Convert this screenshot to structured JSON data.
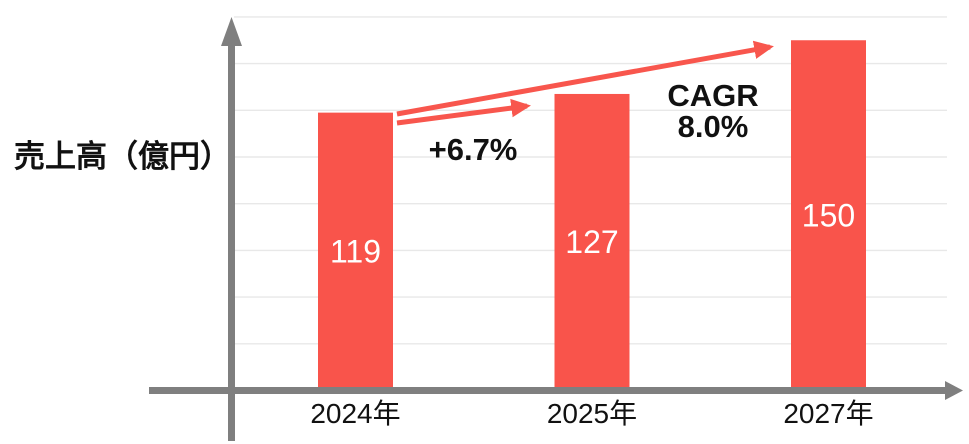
{
  "chart_data": {
    "type": "bar",
    "title": "",
    "ylabel": "売上高（億円）",
    "categories": [
      "2024年",
      "2025年",
      "2027年"
    ],
    "values": [
      119,
      127,
      150
    ],
    "bar_labels": [
      "119",
      "127",
      "150"
    ],
    "ylim": [
      0,
      160
    ],
    "gridline_step": 20,
    "grid": true,
    "legend": "none",
    "annotations": [
      {
        "id": "growth-2024-2025",
        "label": "+6.7%"
      },
      {
        "id": "cagr-2024-2027",
        "label_line1": "CAGR",
        "label_line2": "8.0%"
      }
    ],
    "colors": {
      "bar": "#F9544B",
      "bar_label": "#FFFFFF",
      "arrow": "#F8564D",
      "axis": "#7F7F7F",
      "gridline": "#E8E8E8",
      "label_text": "#111111"
    }
  }
}
